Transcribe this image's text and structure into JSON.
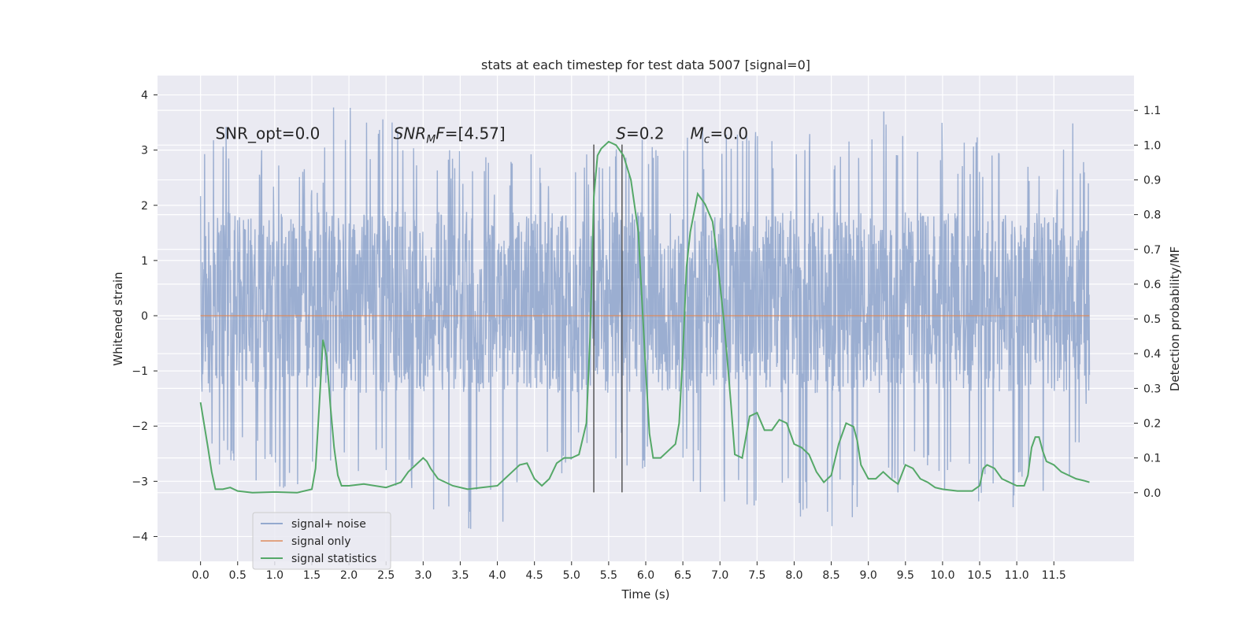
{
  "chart_data": {
    "type": "line",
    "title": "stats at each timestep for test data 5007 [signal=0]",
    "xlabel": "Time (s)",
    "ylabel_left": "Whitened strain",
    "ylabel_right": "Detection probability/MF",
    "xlim": [
      -0.58,
      12.58
    ],
    "ylim_left": [
      -4.45,
      4.35
    ],
    "ylim_right": [
      -0.1975,
      1.2
    ],
    "x_ticks": [
      0.0,
      0.5,
      1.0,
      1.5,
      2.0,
      2.5,
      3.0,
      3.5,
      4.0,
      4.5,
      5.0,
      5.5,
      6.0,
      6.5,
      7.0,
      7.5,
      8.0,
      8.5,
      9.0,
      9.5,
      10.0,
      10.5,
      11.0,
      11.5
    ],
    "x_tick_labels": [
      "0.0",
      "0.5",
      "1.0",
      "1.5",
      "2.0",
      "2.5",
      "3.0",
      "3.5",
      "4.0",
      "4.5",
      "5.0",
      "5.5",
      "6.0",
      "6.5",
      "7.0",
      "7.5",
      "8.0",
      "8.5",
      "9.0",
      "9.5",
      "10.0",
      "10.5",
      "11.0",
      "11.5"
    ],
    "y_left_ticks": [
      -4,
      -3,
      -2,
      -1,
      0,
      1,
      2,
      3,
      4
    ],
    "y_left_tick_labels": [
      "−4",
      "−3",
      "−2",
      "−1",
      "0",
      "1",
      "2",
      "3",
      "4"
    ],
    "y_right_ticks": [
      0.0,
      0.1,
      0.2,
      0.3,
      0.4,
      0.5,
      0.6,
      0.7,
      0.8,
      0.9,
      1.0,
      1.1
    ],
    "y_right_tick_labels": [
      "0.0",
      "0.1",
      "0.2",
      "0.3",
      "0.4",
      "0.5",
      "0.6",
      "0.7",
      "0.8",
      "0.9",
      "1.0",
      "1.1"
    ],
    "grid": true,
    "legend_position": "lower-left",
    "colors": {
      "background": "#eaeaf2",
      "grid": "#ffffff",
      "noise": "#4c72b0",
      "signal_only": "#dd8452",
      "statistics": "#55a868",
      "vlines": "#555555"
    },
    "series": [
      {
        "name": "signal+ noise",
        "style": "dense noise trace",
        "x_range": [
          0.0,
          11.98
        ],
        "typical_range": [
          -1.4,
          1.9
        ],
        "envelope": [
          {
            "x": 0.0,
            "upper": 2.4,
            "lower": -1.6
          },
          {
            "x": 0.1,
            "upper": 3.8,
            "lower": -2.7
          },
          {
            "x": 1.6,
            "upper": 2.6,
            "lower": -3.4
          },
          {
            "x": 1.77,
            "upper": 3.95,
            "lower": -2.6
          },
          {
            "x": 3.85,
            "upper": 2.9,
            "lower": -4.05
          },
          {
            "x": 5.3,
            "upper": 3.1,
            "lower": -2.6
          },
          {
            "x": 7.3,
            "upper": 3.6,
            "lower": -3.5
          },
          {
            "x": 8.35,
            "upper": 3.4,
            "lower": -4.0
          },
          {
            "x": 9.5,
            "upper": 3.85,
            "lower": -3.2
          },
          {
            "x": 11.55,
            "upper": 2.6,
            "lower": -3.6
          },
          {
            "x": 11.74,
            "upper": 3.7,
            "lower": -3.0
          },
          {
            "x": 11.98,
            "upper": 2.5,
            "lower": -1.4
          }
        ]
      },
      {
        "name": "signal only",
        "x": [
          0.0,
          11.98
        ],
        "y": [
          0.0,
          0.0
        ]
      },
      {
        "name": "signal statistics",
        "axis": "right",
        "x": [
          0.0,
          0.1,
          0.15,
          0.2,
          0.3,
          0.4,
          0.5,
          0.7,
          1.0,
          1.3,
          1.5,
          1.55,
          1.6,
          1.65,
          1.7,
          1.75,
          1.8,
          1.85,
          1.9,
          2.0,
          2.2,
          2.5,
          2.7,
          2.8,
          2.9,
          3.0,
          3.05,
          3.1,
          3.2,
          3.4,
          3.6,
          3.8,
          4.0,
          4.1,
          4.2,
          4.3,
          4.4,
          4.5,
          4.6,
          4.7,
          4.8,
          4.9,
          5.0,
          5.1,
          5.2,
          5.25,
          5.3,
          5.35,
          5.4,
          5.5,
          5.6,
          5.7,
          5.8,
          5.9,
          5.95,
          6.0,
          6.05,
          6.1,
          6.2,
          6.3,
          6.4,
          6.45,
          6.5,
          6.55,
          6.6,
          6.7,
          6.8,
          6.9,
          6.95,
          7.0,
          7.05,
          7.1,
          7.15,
          7.2,
          7.3,
          7.4,
          7.5,
          7.6,
          7.7,
          7.8,
          7.9,
          8.0,
          8.1,
          8.2,
          8.3,
          8.4,
          8.5,
          8.6,
          8.7,
          8.8,
          8.85,
          8.9,
          9.0,
          9.1,
          9.2,
          9.3,
          9.4,
          9.5,
          9.6,
          9.7,
          9.8,
          9.9,
          10.0,
          10.2,
          10.4,
          10.5,
          10.55,
          10.6,
          10.7,
          10.8,
          10.9,
          11.0,
          11.1,
          11.15,
          11.2,
          11.25,
          11.3,
          11.35,
          11.4,
          11.5,
          11.6,
          11.7,
          11.8,
          11.9,
          11.98
        ],
        "y": [
          0.26,
          0.13,
          0.06,
          0.01,
          0.01,
          0.015,
          0.005,
          0.0,
          0.002,
          0.0,
          0.01,
          0.07,
          0.25,
          0.44,
          0.39,
          0.25,
          0.13,
          0.05,
          0.02,
          0.02,
          0.025,
          0.015,
          0.03,
          0.06,
          0.08,
          0.1,
          0.09,
          0.07,
          0.04,
          0.02,
          0.01,
          0.015,
          0.02,
          0.04,
          0.06,
          0.08,
          0.085,
          0.04,
          0.02,
          0.04,
          0.085,
          0.1,
          0.1,
          0.11,
          0.2,
          0.45,
          0.85,
          0.97,
          0.99,
          1.01,
          1.0,
          0.97,
          0.9,
          0.75,
          0.55,
          0.35,
          0.17,
          0.1,
          0.1,
          0.12,
          0.14,
          0.2,
          0.4,
          0.65,
          0.75,
          0.86,
          0.83,
          0.78,
          0.7,
          0.6,
          0.5,
          0.38,
          0.25,
          0.11,
          0.1,
          0.22,
          0.23,
          0.18,
          0.18,
          0.21,
          0.2,
          0.14,
          0.13,
          0.11,
          0.06,
          0.03,
          0.05,
          0.14,
          0.2,
          0.19,
          0.15,
          0.08,
          0.04,
          0.04,
          0.06,
          0.04,
          0.025,
          0.08,
          0.07,
          0.04,
          0.03,
          0.015,
          0.01,
          0.005,
          0.005,
          0.02,
          0.07,
          0.08,
          0.07,
          0.04,
          0.03,
          0.02,
          0.02,
          0.05,
          0.13,
          0.16,
          0.16,
          0.12,
          0.09,
          0.08,
          0.06,
          0.05,
          0.04,
          0.035,
          0.03
        ]
      }
    ],
    "vertical_lines": [
      {
        "x": 5.3,
        "y_range": [
          -3.2,
          3.1
        ]
      },
      {
        "x": 5.68,
        "y_range": [
          -3.2,
          3.1
        ]
      }
    ],
    "annotations": [
      {
        "text": "SNR_opt=0.0",
        "x": 0.2,
        "y": 3.2
      },
      {
        "text": "SNR",
        "subscript": "M",
        "suffix": "F=[4.57]",
        "italic_part": "SNR_M F",
        "x": 2.6,
        "y": 3.2
      },
      {
        "text": "S",
        "suffix": "=0.2",
        "italic_part": "S",
        "x": 5.6,
        "y": 3.2
      },
      {
        "text": "M",
        "subscript": "c",
        "suffix": "=0.0",
        "italic_part": "M_c",
        "x": 6.6,
        "y": 3.2
      }
    ],
    "legend": [
      "signal+ noise",
      "signal only",
      "signal statistics"
    ]
  }
}
